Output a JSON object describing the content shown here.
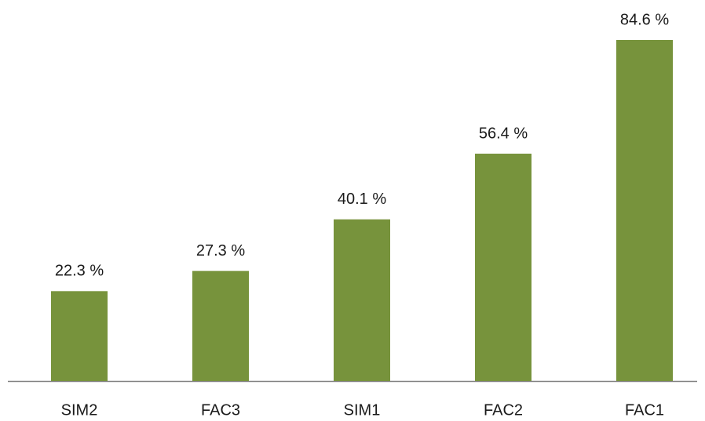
{
  "chart_data": {
    "type": "bar",
    "categories": [
      "SIM2",
      "FAC3",
      "SIM1",
      "FAC2",
      "FAC1"
    ],
    "values": [
      22.3,
      27.3,
      40.1,
      56.4,
      84.6
    ],
    "value_labels": [
      "22.3 %",
      "27.3 %",
      "40.1 %",
      "56.4 %",
      "84.6 %"
    ],
    "color": "#77933c"
  }
}
